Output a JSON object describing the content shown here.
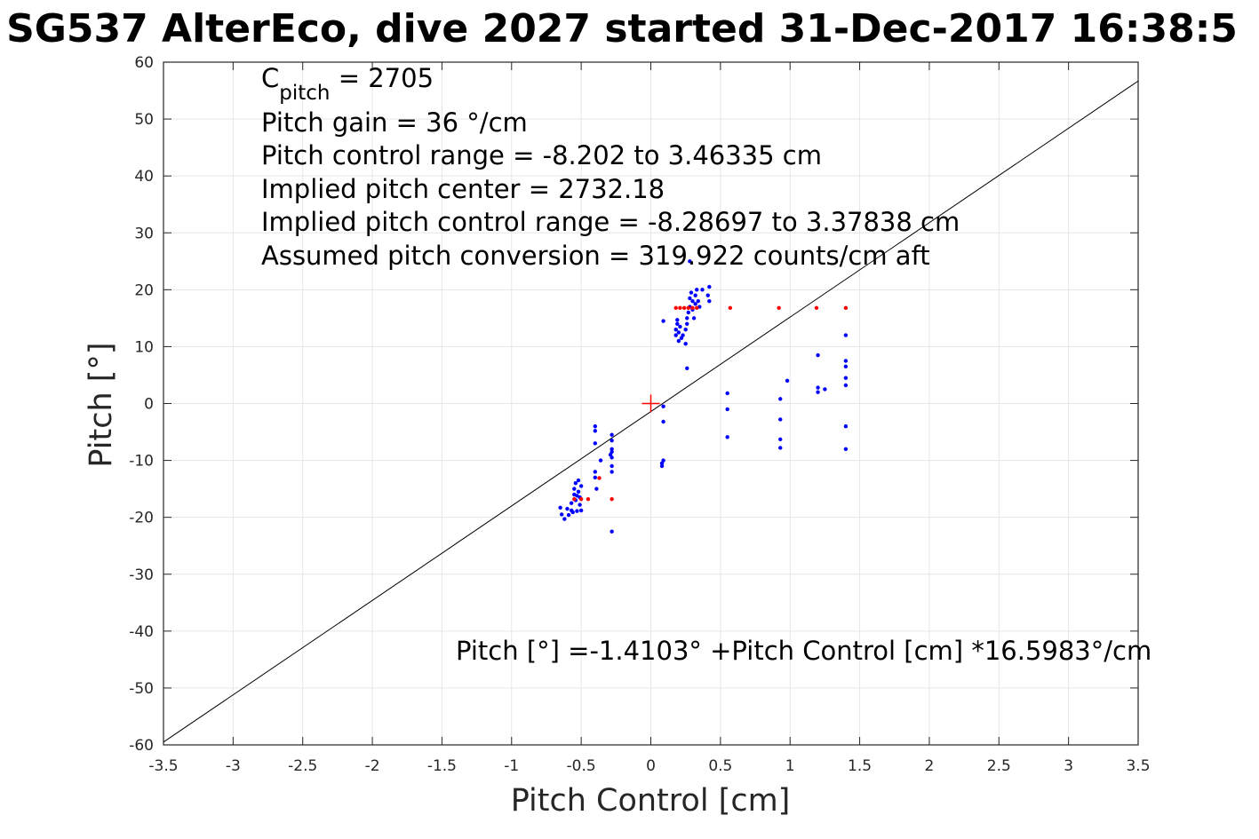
{
  "chart_data": {
    "type": "scatter",
    "title": "SG537 AlterEco, dive 2027 started 31-Dec-2017 16:38:5",
    "xlabel": "Pitch Control [cm]",
    "ylabel": "Pitch [°]",
    "xlim": [
      -3.5,
      3.5
    ],
    "ylim": [
      -60,
      60
    ],
    "xticks": [
      -3.5,
      -3,
      -2.5,
      -2,
      -1.5,
      -1,
      -0.5,
      0,
      0.5,
      1,
      1.5,
      2,
      2.5,
      3,
      3.5
    ],
    "xticklabels": [
      "-3.5",
      "-3",
      "-2.5",
      "-2",
      "-1.5",
      "-1",
      "-0.5",
      "0",
      "0.5",
      "1",
      "1.5",
      "2",
      "2.5",
      "3",
      "3.5"
    ],
    "yticks": [
      -60,
      -50,
      -40,
      -30,
      -20,
      -10,
      0,
      10,
      20,
      30,
      40,
      50,
      60
    ],
    "yticklabels": [
      "-60",
      "-50",
      "-40",
      "-30",
      "-20",
      "-10",
      "0",
      "10",
      "20",
      "30",
      "40",
      "50",
      "60"
    ],
    "grid": true,
    "annotations": [
      {
        "base": "C",
        "sub": "pitch",
        "rest": " = 2705"
      },
      {
        "text": "Pitch gain = 36 °/cm"
      },
      {
        "text": "Pitch control range = -8.202 to 3.46335 cm"
      },
      {
        "text": "Implied pitch center = 2732.18"
      },
      {
        "text": "Implied pitch control range = -8.28697 to 3.37838 cm"
      },
      {
        "text": "Assumed pitch conversion = 319.922 counts/cm aft"
      }
    ],
    "fit_text": "Pitch [°] =-1.4103° +Pitch Control [cm] *16.5983°/cm",
    "fit_line": {
      "intercept": -1.4103,
      "slope": 16.5983,
      "color": "#000000"
    },
    "center_marker": {
      "x": 0,
      "y": 0,
      "color": "#ff0000"
    },
    "series": [
      {
        "color": "#0000ff",
        "points": [
          [
            -0.65,
            -18.3
          ],
          [
            -0.64,
            -19.5
          ],
          [
            -0.62,
            -20.3
          ],
          [
            -0.6,
            -18.5
          ],
          [
            -0.59,
            -19.6
          ],
          [
            -0.57,
            -18.8
          ],
          [
            -0.57,
            -17.5
          ],
          [
            -0.56,
            -19.1
          ],
          [
            -0.55,
            -16.0
          ],
          [
            -0.55,
            -15.0
          ],
          [
            -0.54,
            -14.0
          ],
          [
            -0.54,
            -17.0
          ],
          [
            -0.53,
            -18.9
          ],
          [
            -0.52,
            -15.5
          ],
          [
            -0.52,
            -13.5
          ],
          [
            -0.51,
            -16.5
          ],
          [
            -0.5,
            -14.5
          ],
          [
            -0.5,
            -18.8
          ],
          [
            -0.53,
            -16.2
          ],
          [
            -0.51,
            -17.8
          ],
          [
            -0.4,
            -4.0
          ],
          [
            -0.4,
            -4.8
          ],
          [
            -0.4,
            -7.0
          ],
          [
            -0.4,
            -12.0
          ],
          [
            -0.4,
            -13.0
          ],
          [
            -0.39,
            -15.0
          ],
          [
            -0.36,
            -10.0
          ],
          [
            -0.29,
            -9.0
          ],
          [
            -0.28,
            -5.5
          ],
          [
            -0.28,
            -6.5
          ],
          [
            -0.28,
            -8.0
          ],
          [
            -0.28,
            -8.5
          ],
          [
            -0.28,
            -9.5
          ],
          [
            -0.28,
            -11.0
          ],
          [
            -0.28,
            -12.0
          ],
          [
            -0.28,
            -22.5
          ],
          [
            0.09,
            -0.5
          ],
          [
            0.09,
            -3.2
          ],
          [
            0.08,
            -10.5
          ],
          [
            0.08,
            -11.0
          ],
          [
            0.09,
            -10.0
          ],
          [
            0.09,
            14.5
          ],
          [
            0.18,
            12.0
          ],
          [
            0.18,
            13.0
          ],
          [
            0.19,
            14.0
          ],
          [
            0.19,
            14.7
          ],
          [
            0.2,
            11.0
          ],
          [
            0.2,
            12.5
          ],
          [
            0.21,
            13.5
          ],
          [
            0.22,
            11.5
          ],
          [
            0.23,
            12.0
          ],
          [
            0.25,
            10.5
          ],
          [
            0.25,
            13.0
          ],
          [
            0.26,
            14.0
          ],
          [
            0.26,
            15.0
          ],
          [
            0.27,
            16.0
          ],
          [
            0.28,
            17.0
          ],
          [
            0.28,
            18.5
          ],
          [
            0.29,
            19.5
          ],
          [
            0.3,
            16.5
          ],
          [
            0.3,
            18.0
          ],
          [
            0.31,
            15.0
          ],
          [
            0.32,
            17.5
          ],
          [
            0.32,
            19.0
          ],
          [
            0.33,
            20.0
          ],
          [
            0.34,
            18.0
          ],
          [
            0.35,
            17.0
          ],
          [
            0.37,
            20.0
          ],
          [
            0.41,
            19.0
          ],
          [
            0.42,
            18.0
          ],
          [
            0.42,
            20.5
          ],
          [
            0.26,
            6.2
          ],
          [
            0.28,
            25.0
          ],
          [
            0.55,
            1.8
          ],
          [
            0.55,
            -1.0
          ],
          [
            0.55,
            -5.9
          ],
          [
            0.93,
            0.8
          ],
          [
            0.93,
            -2.8
          ],
          [
            0.93,
            -6.3
          ],
          [
            0.93,
            -7.8
          ],
          [
            0.98,
            4.0
          ],
          [
            1.2,
            8.5
          ],
          [
            1.2,
            2.8
          ],
          [
            1.2,
            2.0
          ],
          [
            1.25,
            2.5
          ],
          [
            1.4,
            12.0
          ],
          [
            1.4,
            7.5
          ],
          [
            1.4,
            6.5
          ],
          [
            1.4,
            4.5
          ],
          [
            1.4,
            3.2
          ],
          [
            1.4,
            -4.0
          ],
          [
            1.4,
            -8.0
          ]
        ]
      },
      {
        "color": "#ff0000",
        "points": [
          [
            -0.55,
            -16.8
          ],
          [
            -0.5,
            -16.8
          ],
          [
            -0.45,
            -16.8
          ],
          [
            -0.37,
            -13.1
          ],
          [
            -0.28,
            -16.8
          ],
          [
            0.18,
            16.8
          ],
          [
            0.21,
            16.8
          ],
          [
            0.24,
            16.8
          ],
          [
            0.27,
            16.8
          ],
          [
            0.3,
            16.8
          ],
          [
            0.33,
            16.8
          ],
          [
            0.57,
            16.8
          ],
          [
            0.92,
            16.8
          ],
          [
            1.19,
            16.8
          ],
          [
            1.4,
            16.8
          ]
        ]
      }
    ]
  }
}
